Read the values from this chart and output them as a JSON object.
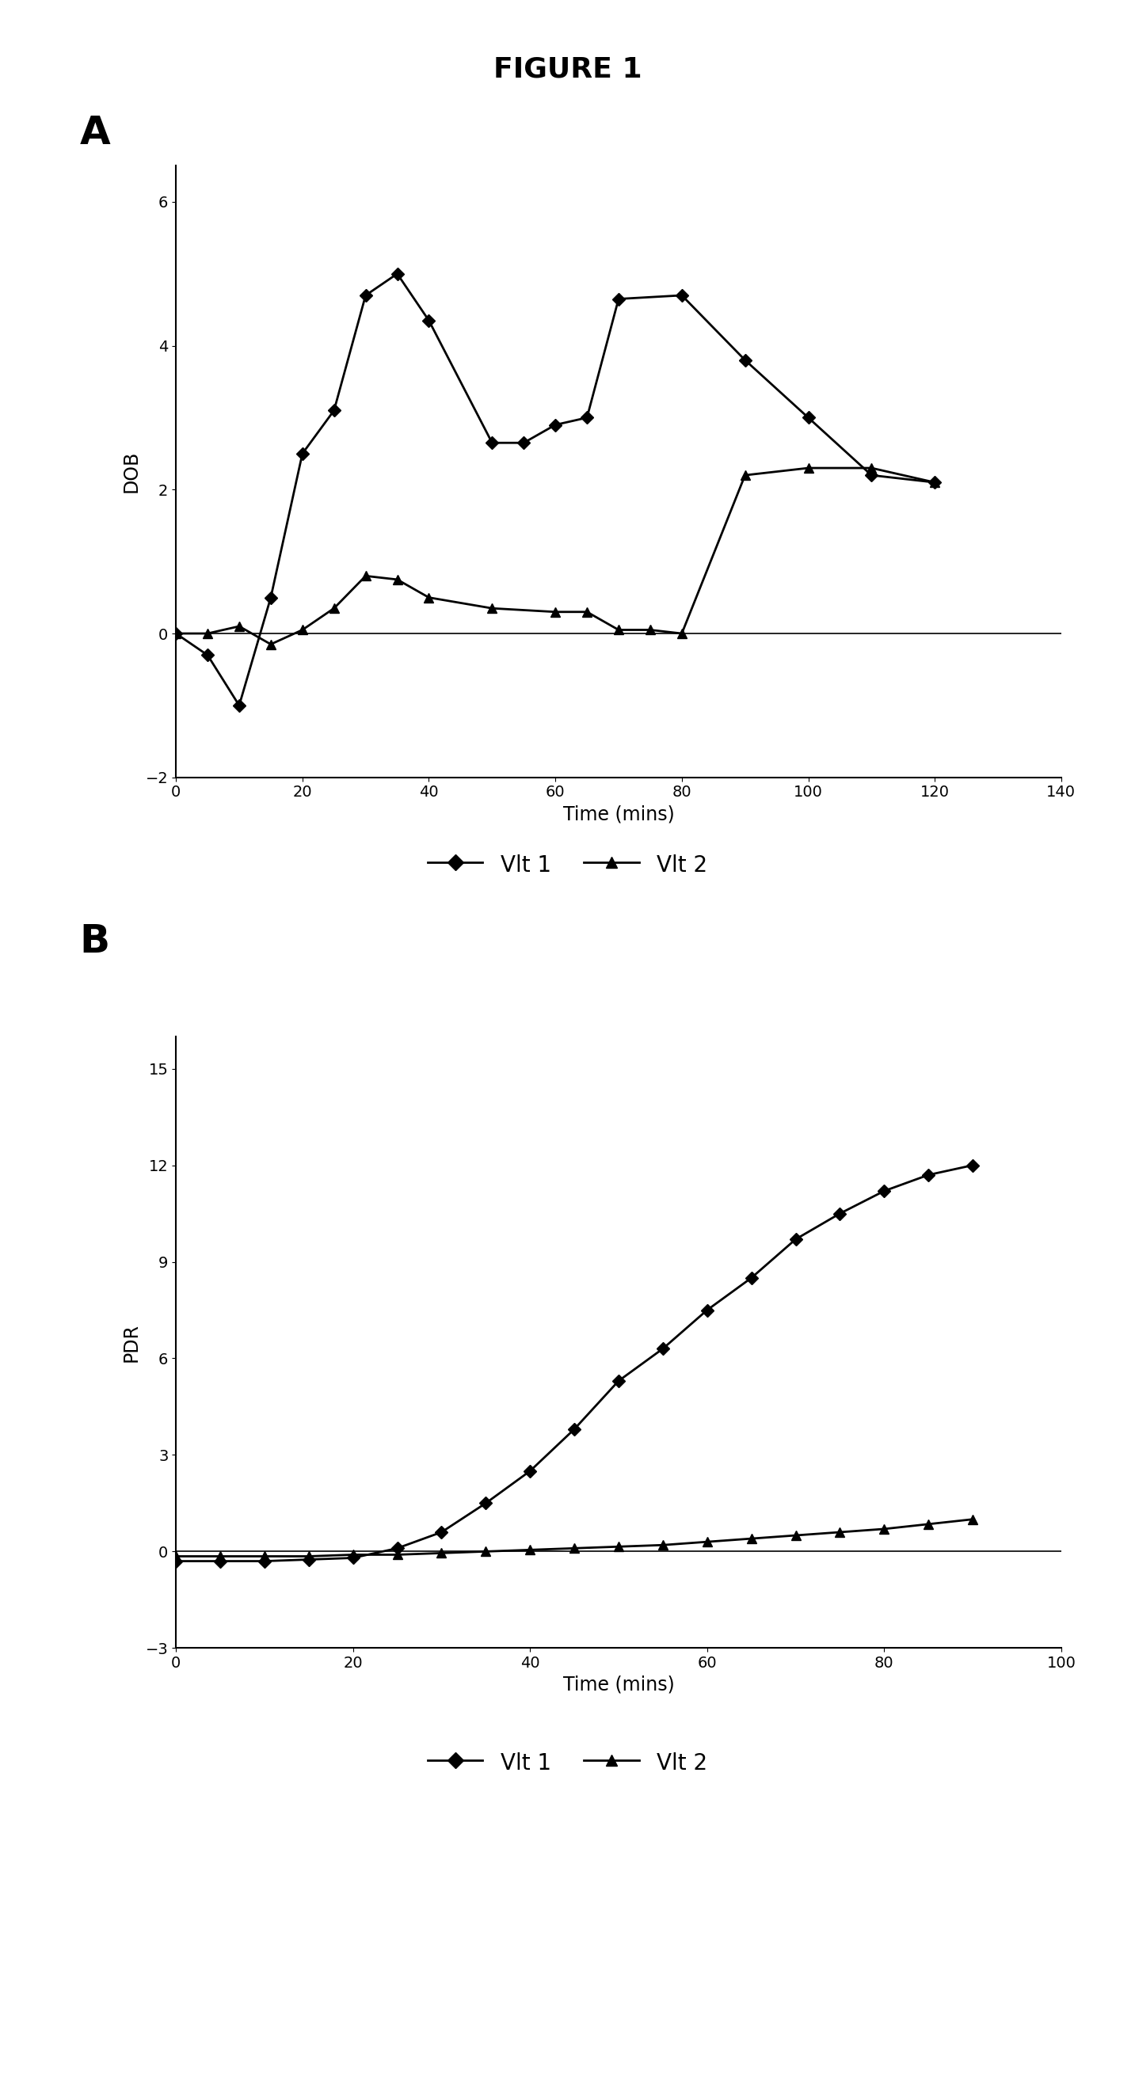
{
  "panel_A": {
    "vlt1_x": [
      0,
      5,
      10,
      15,
      20,
      25,
      30,
      35,
      40,
      50,
      55,
      60,
      65,
      70,
      80,
      90,
      100,
      110,
      120
    ],
    "vlt1_y": [
      0.0,
      -0.3,
      -1.0,
      0.5,
      2.5,
      3.1,
      4.7,
      5.0,
      4.35,
      2.65,
      2.65,
      2.9,
      3.0,
      4.65,
      4.7,
      3.8,
      3.0,
      2.2,
      2.1
    ],
    "vlt2_x": [
      0,
      5,
      10,
      15,
      20,
      25,
      30,
      35,
      40,
      50,
      60,
      65,
      70,
      75,
      80,
      90,
      100,
      110,
      120
    ],
    "vlt2_y": [
      0.0,
      0.0,
      0.1,
      -0.15,
      0.05,
      0.35,
      0.8,
      0.75,
      0.5,
      0.35,
      0.3,
      0.3,
      0.05,
      0.05,
      0.0,
      2.2,
      2.3,
      2.3,
      2.1
    ],
    "ylabel": "DOB",
    "xlabel": "Time (mins)",
    "ylim": [
      -2.0,
      6.5
    ],
    "xlim": [
      0,
      140
    ],
    "yticks": [
      -2,
      0,
      2,
      4,
      6
    ],
    "xticks": [
      0,
      20,
      40,
      60,
      80,
      100,
      120,
      140
    ]
  },
  "panel_B": {
    "vlt1_x": [
      0,
      5,
      10,
      15,
      20,
      25,
      30,
      35,
      40,
      45,
      50,
      55,
      60,
      65,
      70,
      75,
      80,
      85,
      90
    ],
    "vlt1_y": [
      -0.3,
      -0.3,
      -0.3,
      -0.25,
      -0.2,
      0.1,
      0.6,
      1.5,
      2.5,
      3.8,
      5.3,
      6.3,
      7.5,
      8.5,
      9.7,
      10.5,
      11.2,
      11.7,
      12.0
    ],
    "vlt2_x": [
      0,
      5,
      10,
      15,
      20,
      25,
      30,
      35,
      40,
      45,
      50,
      55,
      60,
      65,
      70,
      75,
      80,
      85,
      90
    ],
    "vlt2_y": [
      -0.15,
      -0.15,
      -0.15,
      -0.15,
      -0.1,
      -0.1,
      -0.05,
      0.0,
      0.05,
      0.1,
      0.15,
      0.2,
      0.3,
      0.4,
      0.5,
      0.6,
      0.7,
      0.85,
      1.0
    ],
    "ylabel": "PDR",
    "xlabel": "Time (mins)",
    "ylim": [
      -3.0,
      16.0
    ],
    "xlim": [
      0,
      96
    ],
    "yticks": [
      -3,
      0,
      3,
      6,
      9,
      12,
      15
    ],
    "xticks": [
      0,
      20,
      40,
      60,
      80,
      100
    ]
  },
  "legend_vlt1": "Vlt 1",
  "legend_vlt2": "Vlt 2",
  "title": "FIGURE 1",
  "label_A": "A",
  "label_B": "B",
  "line_color": "#000000",
  "bg_color": "#ffffff"
}
